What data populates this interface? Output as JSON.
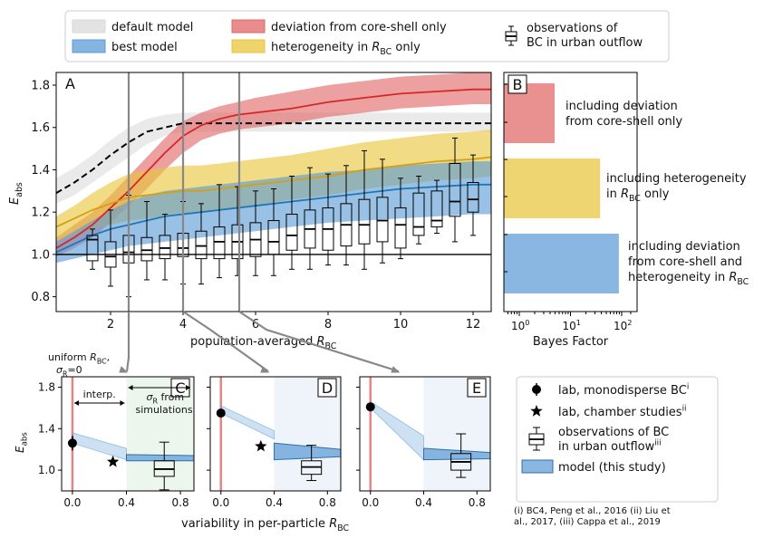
{
  "legend_top": {
    "items": [
      {
        "label": "default model",
        "color": "#d9d9d9"
      },
      {
        "label": "best model",
        "color": "#5b9bd5"
      },
      {
        "label": "deviation from core-shell only",
        "color": "#e06666"
      },
      {
        "label": "heterogeneity in R_BC only",
        "color": "#e8c53a"
      }
    ],
    "obs_label_line1": "observations of",
    "obs_label_line2": "BC in urban outflow"
  },
  "panelA": {
    "letter": "A",
    "ylabel": "E_abs",
    "xlabel": "population-averaged R_BC"
  },
  "panelB": {
    "letter": "B",
    "xlabel": "Bayes Factor",
    "bar_labels": [
      [
        "including deviation",
        "from core-shell only"
      ],
      [
        "including heterogeneity",
        "in R_BC only"
      ],
      [
        "including deviation",
        "from core-shell and",
        "heterogeneity in R_BC"
      ]
    ]
  },
  "panelsCDE": {
    "letters": [
      "C",
      "D",
      "E"
    ],
    "ylabel": "E_abs",
    "xlabel": "variability in per-particle R_BC",
    "uniform_label_line1": "uniform R_BC,",
    "uniform_label_line2": "σ_R=0",
    "interp_label": "interp.",
    "sigma_label_line1": "σ_R from",
    "sigma_label_line2": "simulations"
  },
  "legend_bottom": {
    "items": [
      "lab, monodisperse BC^i",
      "lab, chamber studies^ii",
      "observations of BC",
      "in urban outflow^iii",
      "model (this study)"
    ],
    "refs": [
      "(i) BC4, Peng et al., 2016 (ii) Liu et",
      "al., 2017, (iii) Cappa et al., 2019"
    ]
  },
  "chart_data": [
    {
      "panel": "A",
      "type": "line",
      "xlim": [
        0.5,
        12.5
      ],
      "ylim": [
        0.73,
        1.86
      ],
      "x_ticks": [
        2,
        4,
        6,
        8,
        10,
        12
      ],
      "y_ticks": [
        0.8,
        1.0,
        1.2,
        1.4,
        1.6,
        1.8
      ],
      "reference_line_y": 1.0,
      "vertical_markers_x": [
        2.5,
        4.0,
        5.55
      ],
      "x": [
        0.5,
        1,
        1.5,
        2,
        2.5,
        3,
        3.5,
        4,
        4.5,
        5,
        5.5,
        6,
        7,
        8,
        9,
        10,
        11,
        12,
        12.5
      ],
      "series": [
        {
          "name": "default model",
          "style": "dashed",
          "color": "#000000",
          "band_color": "#d9d9d9",
          "values": [
            1.29,
            1.34,
            1.4,
            1.47,
            1.53,
            1.58,
            1.6,
            1.62,
            1.62,
            1.62,
            1.62,
            1.62,
            1.62,
            1.62,
            1.62,
            1.62,
            1.62,
            1.62,
            1.62
          ],
          "lower": [
            1.24,
            1.28,
            1.34,
            1.4,
            1.46,
            1.52,
            1.56,
            1.58,
            1.58,
            1.58,
            1.58,
            1.58,
            1.58,
            1.58,
            1.58,
            1.58,
            1.58,
            1.58,
            1.58
          ],
          "upper": [
            1.36,
            1.41,
            1.47,
            1.54,
            1.6,
            1.64,
            1.66,
            1.67,
            1.67,
            1.67,
            1.67,
            1.67,
            1.67,
            1.67,
            1.67,
            1.67,
            1.67,
            1.67,
            1.67
          ]
        },
        {
          "name": "deviation from core-shell only",
          "style": "solid",
          "color": "#d62728",
          "band_color": "#e06666",
          "values": [
            1.03,
            1.08,
            1.14,
            1.22,
            1.3,
            1.39,
            1.48,
            1.56,
            1.61,
            1.64,
            1.66,
            1.67,
            1.69,
            1.72,
            1.74,
            1.76,
            1.77,
            1.78,
            1.78
          ],
          "lower": [
            0.99,
            1.03,
            1.08,
            1.15,
            1.23,
            1.31,
            1.4,
            1.48,
            1.54,
            1.57,
            1.59,
            1.6,
            1.62,
            1.65,
            1.67,
            1.69,
            1.7,
            1.71,
            1.71
          ],
          "upper": [
            1.08,
            1.14,
            1.2,
            1.28,
            1.37,
            1.46,
            1.55,
            1.63,
            1.67,
            1.7,
            1.72,
            1.74,
            1.77,
            1.8,
            1.82,
            1.84,
            1.85,
            1.86,
            1.86
          ]
        },
        {
          "name": "heterogeneity in R_BC only",
          "style": "solid",
          "color": "#d4a017",
          "band_color": "#e8c53a",
          "values": [
            1.13,
            1.17,
            1.21,
            1.24,
            1.27,
            1.28,
            1.29,
            1.3,
            1.3,
            1.31,
            1.32,
            1.33,
            1.35,
            1.37,
            1.4,
            1.42,
            1.44,
            1.45,
            1.46
          ],
          "lower": [
            1.06,
            1.09,
            1.12,
            1.14,
            1.16,
            1.17,
            1.18,
            1.19,
            1.2,
            1.21,
            1.22,
            1.23,
            1.26,
            1.28,
            1.31,
            1.33,
            1.35,
            1.36,
            1.37
          ],
          "upper": [
            1.18,
            1.23,
            1.29,
            1.34,
            1.38,
            1.4,
            1.41,
            1.42,
            1.42,
            1.43,
            1.44,
            1.45,
            1.47,
            1.5,
            1.53,
            1.55,
            1.57,
            1.58,
            1.59
          ]
        },
        {
          "name": "best model",
          "style": "solid",
          "color": "#1f77b4",
          "band_color": "#5b9bd5",
          "values": [
            1.01,
            1.05,
            1.09,
            1.12,
            1.14,
            1.16,
            1.18,
            1.19,
            1.2,
            1.21,
            1.22,
            1.23,
            1.25,
            1.27,
            1.29,
            1.31,
            1.32,
            1.33,
            1.33
          ],
          "lower": [
            0.96,
            0.98,
            1.0,
            1.02,
            1.04,
            1.05,
            1.06,
            1.07,
            1.08,
            1.09,
            1.1,
            1.11,
            1.13,
            1.15,
            1.16,
            1.17,
            1.18,
            1.19,
            1.19
          ],
          "upper": [
            1.06,
            1.11,
            1.16,
            1.21,
            1.25,
            1.28,
            1.3,
            1.31,
            1.32,
            1.33,
            1.34,
            1.35,
            1.37,
            1.39,
            1.4,
            1.42,
            1.43,
            1.44,
            1.44
          ]
        }
      ],
      "boxplots": [
        {
          "x": 1.5,
          "whislo": 0.93,
          "q1": 0.97,
          "med": 1.07,
          "q3": 1.09,
          "whishi": 1.12
        },
        {
          "x": 2.0,
          "whislo": 0.85,
          "q1": 0.94,
          "med": 0.99,
          "q3": 1.06,
          "whishi": 1.21
        },
        {
          "x": 2.5,
          "whislo": 0.8,
          "q1": 0.96,
          "med": 1.01,
          "q3": 1.09,
          "whishi": 1.28
        },
        {
          "x": 3.0,
          "whislo": 0.88,
          "q1": 0.97,
          "med": 1.02,
          "q3": 1.08,
          "whishi": 1.25
        },
        {
          "x": 3.5,
          "whislo": 0.88,
          "q1": 0.98,
          "med": 1.03,
          "q3": 1.09,
          "whishi": 1.19
        },
        {
          "x": 4.0,
          "whislo": 0.86,
          "q1": 0.99,
          "med": 1.03,
          "q3": 1.1,
          "whishi": 1.25
        },
        {
          "x": 4.5,
          "whislo": 0.86,
          "q1": 0.98,
          "med": 1.04,
          "q3": 1.11,
          "whishi": 1.24
        },
        {
          "x": 5.0,
          "whislo": 0.89,
          "q1": 0.98,
          "med": 1.06,
          "q3": 1.13,
          "whishi": 1.33
        },
        {
          "x": 5.5,
          "whislo": 0.9,
          "q1": 0.98,
          "med": 1.06,
          "q3": 1.14,
          "whishi": 1.32
        },
        {
          "x": 6.0,
          "whislo": 0.9,
          "q1": 0.99,
          "med": 1.07,
          "q3": 1.15,
          "whishi": 1.3
        },
        {
          "x": 6.5,
          "whislo": 0.9,
          "q1": 1.0,
          "med": 1.06,
          "q3": 1.16,
          "whishi": 1.31
        },
        {
          "x": 7.0,
          "whislo": 0.93,
          "q1": 1.02,
          "med": 1.09,
          "q3": 1.19,
          "whishi": 1.37
        },
        {
          "x": 7.5,
          "whislo": 0.93,
          "q1": 1.03,
          "med": 1.12,
          "q3": 1.21,
          "whishi": 1.41
        },
        {
          "x": 8.0,
          "whislo": 0.95,
          "q1": 1.02,
          "med": 1.12,
          "q3": 1.22,
          "whishi": 1.38
        },
        {
          "x": 8.5,
          "whislo": 0.95,
          "q1": 1.04,
          "med": 1.14,
          "q3": 1.24,
          "whishi": 1.42
        },
        {
          "x": 9.0,
          "whislo": 0.93,
          "q1": 1.05,
          "med": 1.14,
          "q3": 1.26,
          "whishi": 1.49
        },
        {
          "x": 9.5,
          "whislo": 0.96,
          "q1": 1.06,
          "med": 1.16,
          "q3": 1.27,
          "whishi": 1.45
        },
        {
          "x": 10.0,
          "whislo": 0.98,
          "q1": 1.03,
          "med": 1.14,
          "q3": 1.22,
          "whishi": 1.36
        },
        {
          "x": 10.5,
          "whislo": 1.05,
          "q1": 1.09,
          "med": 1.13,
          "q3": 1.29,
          "whishi": 1.37
        },
        {
          "x": 11.0,
          "whislo": 1.1,
          "q1": 1.13,
          "med": 1.16,
          "q3": 1.3,
          "whishi": 1.35
        },
        {
          "x": 11.5,
          "whislo": 1.06,
          "q1": 1.18,
          "med": 1.25,
          "q3": 1.43,
          "whishi": 1.55
        },
        {
          "x": 12.0,
          "whislo": 1.09,
          "q1": 1.2,
          "med": 1.26,
          "q3": 1.34,
          "whishi": 1.47
        }
      ]
    },
    {
      "panel": "B",
      "type": "bar",
      "orientation": "horizontal",
      "xscale": "log",
      "xlim": [
        0.5,
        200
      ],
      "x_tick_labels": [
        "10^0",
        "10^1",
        "10^2"
      ],
      "categories": [
        "including deviation from core-shell only",
        "including heterogeneity in R_BC only",
        "including deviation from core-shell and heterogeneity in R_BC"
      ],
      "values": [
        4.9,
        38,
        88
      ],
      "colors": [
        "#e06666",
        "#e8c53a",
        "#5b9bd5"
      ]
    },
    {
      "panel": "C",
      "type": "scatter",
      "xlim": [
        -0.08,
        0.9
      ],
      "ylim": [
        0.8,
        1.9
      ],
      "x_ticks": [
        0.0,
        0.4,
        0.8
      ],
      "y_ticks": [
        1.0,
        1.4,
        1.8
      ],
      "lab_monodisperse": {
        "x": 0.0,
        "y": 1.26,
        "err": 0.07
      },
      "lab_chamber": {
        "x": 0.3,
        "y": 1.08
      },
      "model_band": {
        "x": [
          0.0,
          0.4,
          0.4,
          0.9
        ],
        "lower": [
          1.26,
          1.1,
          1.09,
          1.09
        ],
        "upper": [
          1.36,
          1.21,
          1.15,
          1.14
        ]
      },
      "observation": {
        "x": 0.68,
        "whislo": 0.81,
        "q1": 0.94,
        "med": 1.01,
        "q3": 1.09,
        "whishi": 1.27
      },
      "sigma_region": [
        0.4,
        0.9
      ]
    },
    {
      "panel": "D",
      "type": "scatter",
      "xlim": [
        -0.08,
        0.9
      ],
      "ylim": [
        0.8,
        1.9
      ],
      "x_ticks": [
        0.0,
        0.4,
        0.8
      ],
      "y_ticks": [
        1.0,
        1.4,
        1.8
      ],
      "lab_monodisperse": {
        "x": 0.0,
        "y": 1.55
      },
      "lab_chamber": {
        "x": 0.3,
        "y": 1.23
      },
      "model_band": {
        "x": [
          0.0,
          0.4,
          0.4,
          0.9
        ],
        "lower": [
          1.55,
          1.3,
          1.1,
          1.13
        ],
        "upper": [
          1.62,
          1.38,
          1.26,
          1.2
        ]
      },
      "observation": {
        "x": 0.68,
        "whislo": 0.9,
        "q1": 0.96,
        "med": 1.03,
        "q3": 1.09,
        "whishi": 1.24
      },
      "sigma_region": [
        0.4,
        0.9
      ]
    },
    {
      "panel": "E",
      "type": "scatter",
      "xlim": [
        -0.08,
        0.9
      ],
      "ylim": [
        0.8,
        1.9
      ],
      "x_ticks": [
        0.0,
        0.4,
        0.8
      ],
      "y_ticks": [
        1.0,
        1.4,
        1.8
      ],
      "lab_monodisperse": {
        "x": 0.0,
        "y": 1.61
      },
      "model_band": {
        "x": [
          0.0,
          0.4,
          0.4,
          0.9
        ],
        "lower": [
          1.6,
          1.1,
          1.1,
          1.11
        ],
        "upper": [
          1.66,
          1.33,
          1.21,
          1.17
        ]
      },
      "observation": {
        "x": 0.68,
        "whislo": 0.93,
        "q1": 1.0,
        "med": 1.08,
        "q3": 1.16,
        "whishi": 1.35
      },
      "sigma_region": [
        0.4,
        0.9
      ]
    }
  ]
}
